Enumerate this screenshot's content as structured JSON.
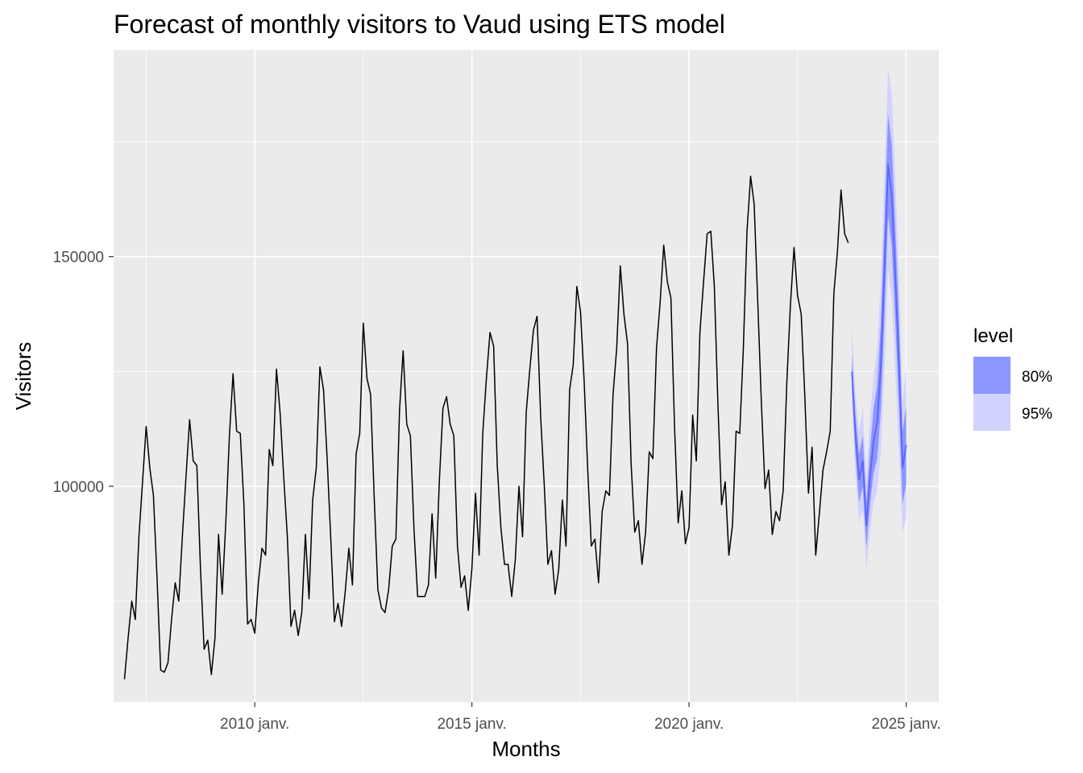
{
  "chart_data": {
    "type": "line",
    "title": "Forecast of monthly visitors to Vaud using ETS model",
    "xlabel": "Months",
    "ylabel": "Visitors",
    "x_ticks": [
      "2010 janv.",
      "2015 janv.",
      "2020 janv.",
      "2025 janv."
    ],
    "y_ticks": [
      "100000",
      "150000"
    ],
    "ylim": [
      53000,
      195000
    ],
    "grid": true,
    "legend": {
      "title": "level",
      "placement": "right",
      "entries": [
        {
          "label": "80%",
          "color": "#8c96ff"
        },
        {
          "label": "95%",
          "color": "#d2d2ff"
        }
      ]
    },
    "colors": {
      "panel_bg": "#ebebeb",
      "grid": "#ffffff",
      "history_line": "#000000",
      "forecast_line": "#5a64ff",
      "band80": "#8c96ff",
      "band95": "#d2d2ff"
    },
    "history": {
      "start": "2007-01",
      "values": [
        58000,
        67000,
        75000,
        71000,
        89000,
        101000,
        113000,
        104000,
        98000,
        80000,
        60000,
        59500,
        61500,
        71000,
        79000,
        75000,
        89000,
        102000,
        114500,
        105500,
        104500,
        82000,
        64500,
        66500,
        59000,
        67000,
        89500,
        76500,
        92000,
        111000,
        124500,
        112000,
        111500,
        96000,
        70000,
        71000,
        68000,
        79000,
        86500,
        85000,
        108000,
        104500,
        125500,
        116000,
        102000,
        89000,
        69500,
        73000,
        67500,
        72500,
        89500,
        75500,
        97000,
        104000,
        126000,
        121000,
        106000,
        88500,
        70500,
        74500,
        69500,
        77000,
        86500,
        78500,
        107000,
        111500,
        135500,
        123500,
        120000,
        97500,
        77500,
        73500,
        72500,
        77500,
        87000,
        88500,
        116500,
        129500,
        113500,
        111000,
        90500,
        76000,
        76000,
        76000,
        78500,
        94000,
        80000,
        101000,
        117000,
        119500,
        113500,
        111000,
        87000,
        78000,
        80500,
        73000,
        82000,
        98500,
        85000,
        111500,
        123500,
        133500,
        130500,
        104500,
        91000,
        83000,
        83000,
        76000,
        84000,
        100000,
        89000,
        116000,
        125500,
        134000,
        137000,
        115000,
        100000,
        83000,
        86000,
        76500,
        82000,
        97000,
        87000,
        121000,
        126500,
        143500,
        138000,
        123000,
        103500,
        87000,
        88500,
        79000,
        94500,
        99000,
        98000,
        120000,
        130000,
        148000,
        137500,
        131000,
        105000,
        90000,
        92500,
        83000,
        90000,
        107500,
        106000,
        130000,
        140000,
        152500,
        144500,
        141000,
        113000,
        92000,
        99000,
        87500,
        91000,
        115500,
        105500,
        133500,
        144500,
        155000,
        155500,
        143500,
        117500,
        96000,
        101000,
        85000,
        91500,
        112000,
        111500,
        130000,
        155500,
        167500,
        161500,
        140000,
        118000,
        99500,
        103500,
        89500,
        94500,
        92500,
        99000,
        122500,
        139500,
        152000,
        141500,
        137500,
        119500,
        98500,
        108500,
        85000,
        94000,
        103500,
        107500,
        112000,
        142000,
        151000,
        164500,
        155000,
        153000
      ]
    },
    "forecast": {
      "start": "2023-10",
      "mean": [
        125000,
        111000,
        101500,
        105500,
        91500,
        102000,
        110000,
        114000,
        126000,
        147000,
        170000,
        163500,
        146000,
        127000,
        104000,
        109000
      ],
      "lo80": [
        121500,
        106500,
        96500,
        100000,
        86500,
        96000,
        103000,
        106000,
        116500,
        136500,
        159000,
        152500,
        135500,
        117500,
        96000,
        100500
      ],
      "hi80": [
        128500,
        115500,
        107000,
        111000,
        96500,
        108000,
        117000,
        122000,
        135500,
        157500,
        181000,
        174500,
        156500,
        136500,
        112000,
        117500
      ],
      "lo95": [
        118000,
        102500,
        92000,
        95000,
        82000,
        90000,
        96500,
        99000,
        107500,
        125000,
        147000,
        141000,
        124000,
        108000,
        90000,
        93000
      ],
      "hi95": [
        134500,
        120000,
        112000,
        117000,
        102000,
        115000,
        124000,
        130000,
        145000,
        168000,
        191000,
        185500,
        167500,
        146000,
        118000,
        126000
      ]
    }
  }
}
